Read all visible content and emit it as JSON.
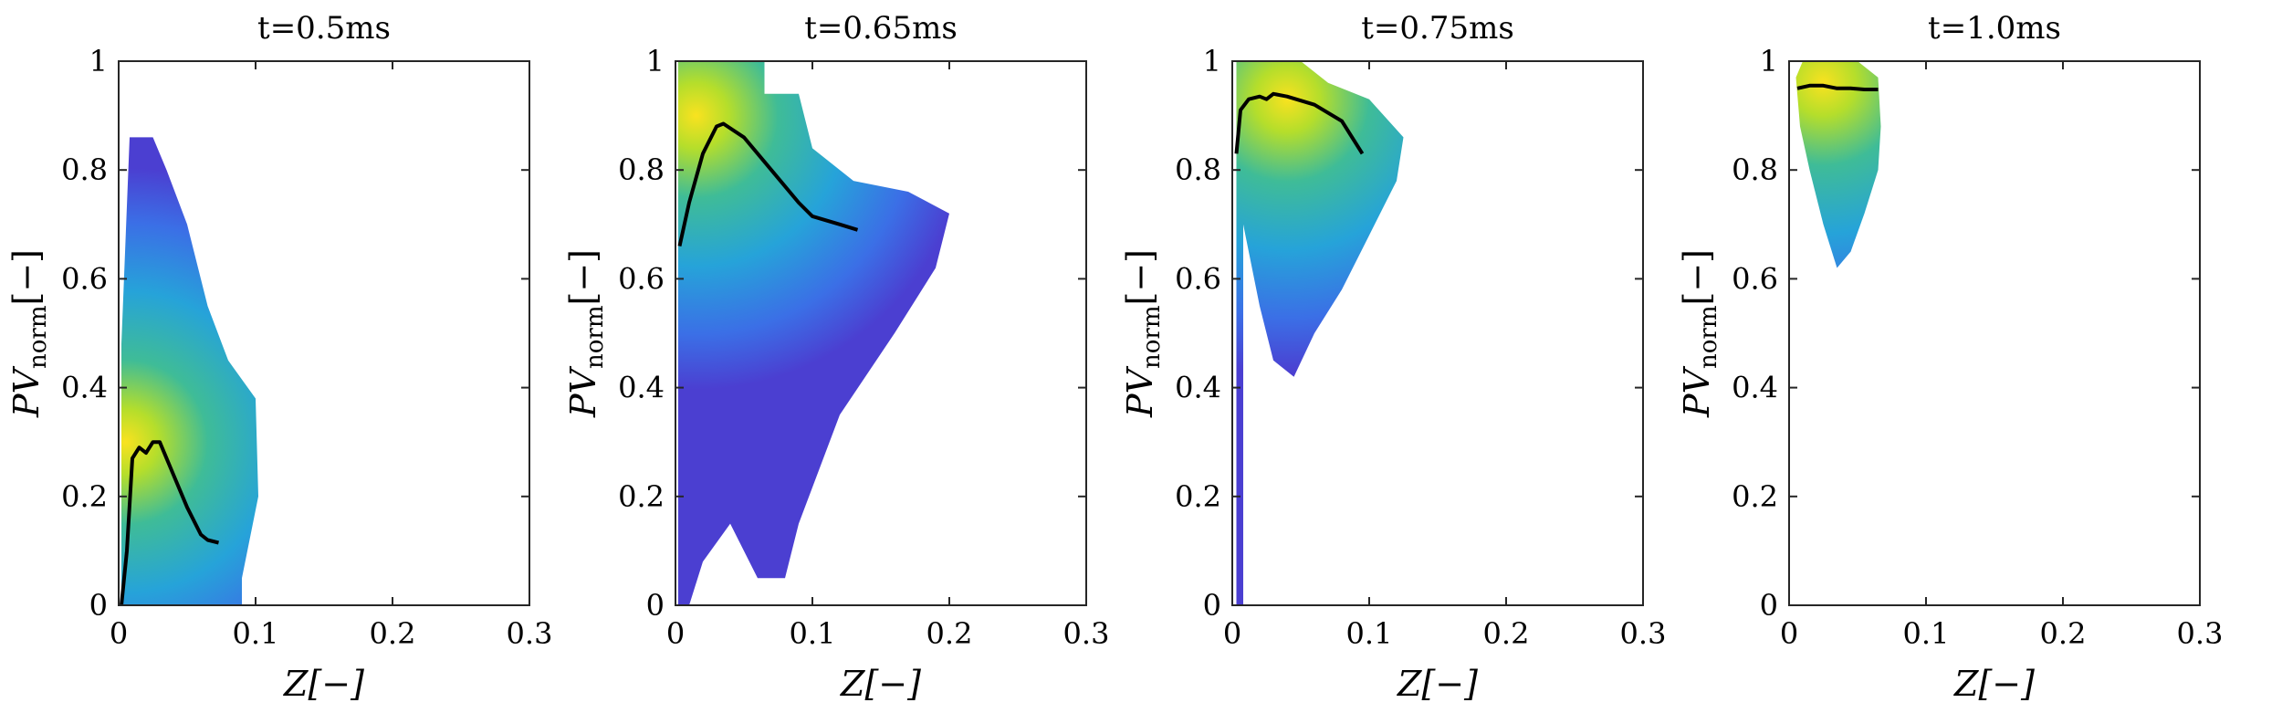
{
  "chart_data": [
    {
      "type": "heatmap",
      "title": "t=0.5ms",
      "xlabel": "Z[−]",
      "ylabel": {
        "base": "PV",
        "subscript": "norm",
        "unit": "[−]"
      },
      "xlim": [
        0,
        0.3
      ],
      "ylim": [
        0,
        1
      ],
      "xticks": [
        "0",
        "0.1",
        "0.2",
        "0.3"
      ],
      "yticks": [
        "0",
        "0.2",
        "0.4",
        "0.6",
        "0.8",
        "1"
      ],
      "density_outline": [
        [
          0.002,
          0.0
        ],
        [
          0.002,
          0.48
        ],
        [
          0.008,
          0.86
        ],
        [
          0.025,
          0.86
        ],
        [
          0.035,
          0.8
        ],
        [
          0.05,
          0.7
        ],
        [
          0.065,
          0.55
        ],
        [
          0.08,
          0.45
        ],
        [
          0.1,
          0.38
        ],
        [
          0.102,
          0.2
        ],
        [
          0.09,
          0.05
        ],
        [
          0.09,
          0.0
        ]
      ],
      "density_peak": [
        0.005,
        0.3
      ],
      "mean_curve": {
        "x": [
          0.002,
          0.006,
          0.01,
          0.015,
          0.02,
          0.025,
          0.03,
          0.04,
          0.05,
          0.06,
          0.065,
          0.073
        ],
        "y": [
          0.0,
          0.1,
          0.27,
          0.29,
          0.28,
          0.3,
          0.3,
          0.24,
          0.18,
          0.13,
          0.12,
          0.115
        ]
      }
    },
    {
      "type": "heatmap",
      "title": "t=0.65ms",
      "xlabel": "Z[−]",
      "ylabel": {
        "base": "PV",
        "subscript": "norm",
        "unit": "[−]"
      },
      "xlim": [
        0,
        0.3
      ],
      "ylim": [
        0,
        1
      ],
      "xticks": [
        "0",
        "0.1",
        "0.2",
        "0.3"
      ],
      "yticks": [
        "0",
        "0.2",
        "0.4",
        "0.6",
        "0.8",
        "1"
      ],
      "density_outline": [
        [
          0.002,
          0.0
        ],
        [
          0.002,
          1.0
        ],
        [
          0.065,
          1.0
        ],
        [
          0.065,
          0.94
        ],
        [
          0.09,
          0.94
        ],
        [
          0.1,
          0.84
        ],
        [
          0.13,
          0.78
        ],
        [
          0.17,
          0.76
        ],
        [
          0.2,
          0.72
        ],
        [
          0.19,
          0.62
        ],
        [
          0.16,
          0.5
        ],
        [
          0.12,
          0.35
        ],
        [
          0.09,
          0.15
        ],
        [
          0.08,
          0.05
        ],
        [
          0.06,
          0.05
        ],
        [
          0.04,
          0.15
        ],
        [
          0.02,
          0.08
        ],
        [
          0.01,
          0.0
        ]
      ],
      "density_peak": [
        0.015,
        0.9
      ],
      "mean_curve": {
        "x": [
          0.003,
          0.01,
          0.02,
          0.03,
          0.035,
          0.05,
          0.07,
          0.09,
          0.1,
          0.12,
          0.133
        ],
        "y": [
          0.66,
          0.74,
          0.83,
          0.88,
          0.885,
          0.86,
          0.8,
          0.74,
          0.715,
          0.7,
          0.69
        ]
      }
    },
    {
      "type": "heatmap",
      "title": "t=0.75ms",
      "xlabel": "Z[−]",
      "ylabel": {
        "base": "PV",
        "subscript": "norm",
        "unit": "[−]"
      },
      "xlim": [
        0,
        0.3
      ],
      "ylim": [
        0,
        1
      ],
      "xticks": [
        "0",
        "0.1",
        "0.2",
        "0.3"
      ],
      "yticks": [
        "0",
        "0.2",
        "0.4",
        "0.6",
        "0.8",
        "1"
      ],
      "density_outline": [
        [
          0.003,
          0.0
        ],
        [
          0.003,
          1.0
        ],
        [
          0.05,
          1.0
        ],
        [
          0.07,
          0.96
        ],
        [
          0.1,
          0.93
        ],
        [
          0.125,
          0.86
        ],
        [
          0.12,
          0.78
        ],
        [
          0.1,
          0.68
        ],
        [
          0.08,
          0.58
        ],
        [
          0.06,
          0.5
        ],
        [
          0.045,
          0.42
        ],
        [
          0.03,
          0.45
        ],
        [
          0.02,
          0.55
        ],
        [
          0.012,
          0.65
        ],
        [
          0.008,
          0.7
        ],
        [
          0.008,
          0.0
        ]
      ],
      "density_peak": [
        0.04,
        0.93
      ],
      "mean_curve": {
        "x": [
          0.003,
          0.006,
          0.012,
          0.02,
          0.025,
          0.03,
          0.04,
          0.06,
          0.08,
          0.095
        ],
        "y": [
          0.83,
          0.91,
          0.93,
          0.935,
          0.93,
          0.94,
          0.935,
          0.92,
          0.89,
          0.83
        ]
      }
    },
    {
      "type": "heatmap",
      "title": "t=1.0ms",
      "xlabel": "Z[−]",
      "ylabel": {
        "base": "PV",
        "subscript": "norm",
        "unit": "[−]"
      },
      "xlim": [
        0,
        0.3
      ],
      "ylim": [
        0,
        1
      ],
      "xticks": [
        "0",
        "0.1",
        "0.2",
        "0.3"
      ],
      "yticks": [
        "0",
        "0.2",
        "0.4",
        "0.6",
        "0.8",
        "1"
      ],
      "density_outline": [
        [
          0.005,
          0.97
        ],
        [
          0.01,
          1.0
        ],
        [
          0.05,
          1.0
        ],
        [
          0.065,
          0.97
        ],
        [
          0.067,
          0.88
        ],
        [
          0.065,
          0.8
        ],
        [
          0.055,
          0.72
        ],
        [
          0.045,
          0.65
        ],
        [
          0.035,
          0.62
        ],
        [
          0.025,
          0.7
        ],
        [
          0.015,
          0.8
        ],
        [
          0.008,
          0.88
        ]
      ],
      "density_peak": [
        0.025,
        0.96
      ],
      "mean_curve": {
        "x": [
          0.006,
          0.015,
          0.025,
          0.035,
          0.045,
          0.055,
          0.065
        ],
        "y": [
          0.95,
          0.955,
          0.955,
          0.95,
          0.95,
          0.948,
          0.948
        ]
      }
    }
  ]
}
